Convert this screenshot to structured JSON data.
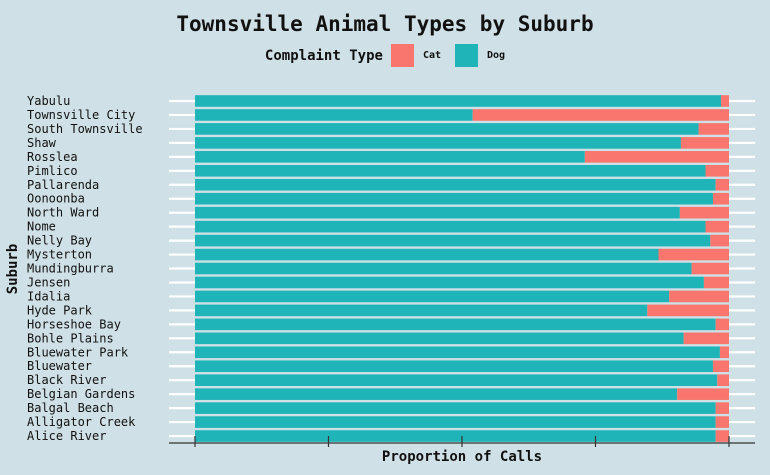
{
  "chart_data": {
    "type": "bar",
    "orientation": "horizontal",
    "stacked": true,
    "normalized": true,
    "title": "Townsville Animal Types by Suburb",
    "xlabel": "Proportion of Calls",
    "ylabel": "Suburb",
    "xlim": [
      0,
      1
    ],
    "legend": {
      "title": "Complaint Type",
      "placement": "top"
    },
    "colors": {
      "Cat": "#f8766d",
      "Dog": "#1fb5b8"
    },
    "categories": [
      "Yabulu",
      "Townsville City",
      "South Townsville",
      "Shaw",
      "Rosslea",
      "Pimlico",
      "Pallarenda",
      "Oonoonba",
      "North Ward",
      "Nome",
      "Nelly Bay",
      "Mysterton",
      "Mundingburra",
      "Jensen",
      "Idalia",
      "Hyde Park",
      "Horseshoe Bay",
      "Bohle Plains",
      "Bluewater Park",
      "Bluewater",
      "Black River",
      "Belgian Gardens",
      "Balgal Beach",
      "Alligator Creek",
      "Alice River"
    ],
    "series": [
      {
        "name": "Dog",
        "values": [
          0.985,
          0.52,
          0.943,
          0.91,
          0.73,
          0.956,
          0.975,
          0.97,
          0.908,
          0.956,
          0.965,
          0.868,
          0.93,
          0.953,
          0.888,
          0.847,
          0.975,
          0.915,
          0.983,
          0.97,
          0.978,
          0.903,
          0.975,
          0.975,
          0.975
        ]
      },
      {
        "name": "Cat",
        "values": [
          0.015,
          0.48,
          0.057,
          0.09,
          0.27,
          0.044,
          0.025,
          0.03,
          0.092,
          0.044,
          0.035,
          0.132,
          0.07,
          0.047,
          0.112,
          0.153,
          0.025,
          0.085,
          0.017,
          0.03,
          0.022,
          0.097,
          0.025,
          0.025,
          0.025
        ]
      }
    ]
  }
}
